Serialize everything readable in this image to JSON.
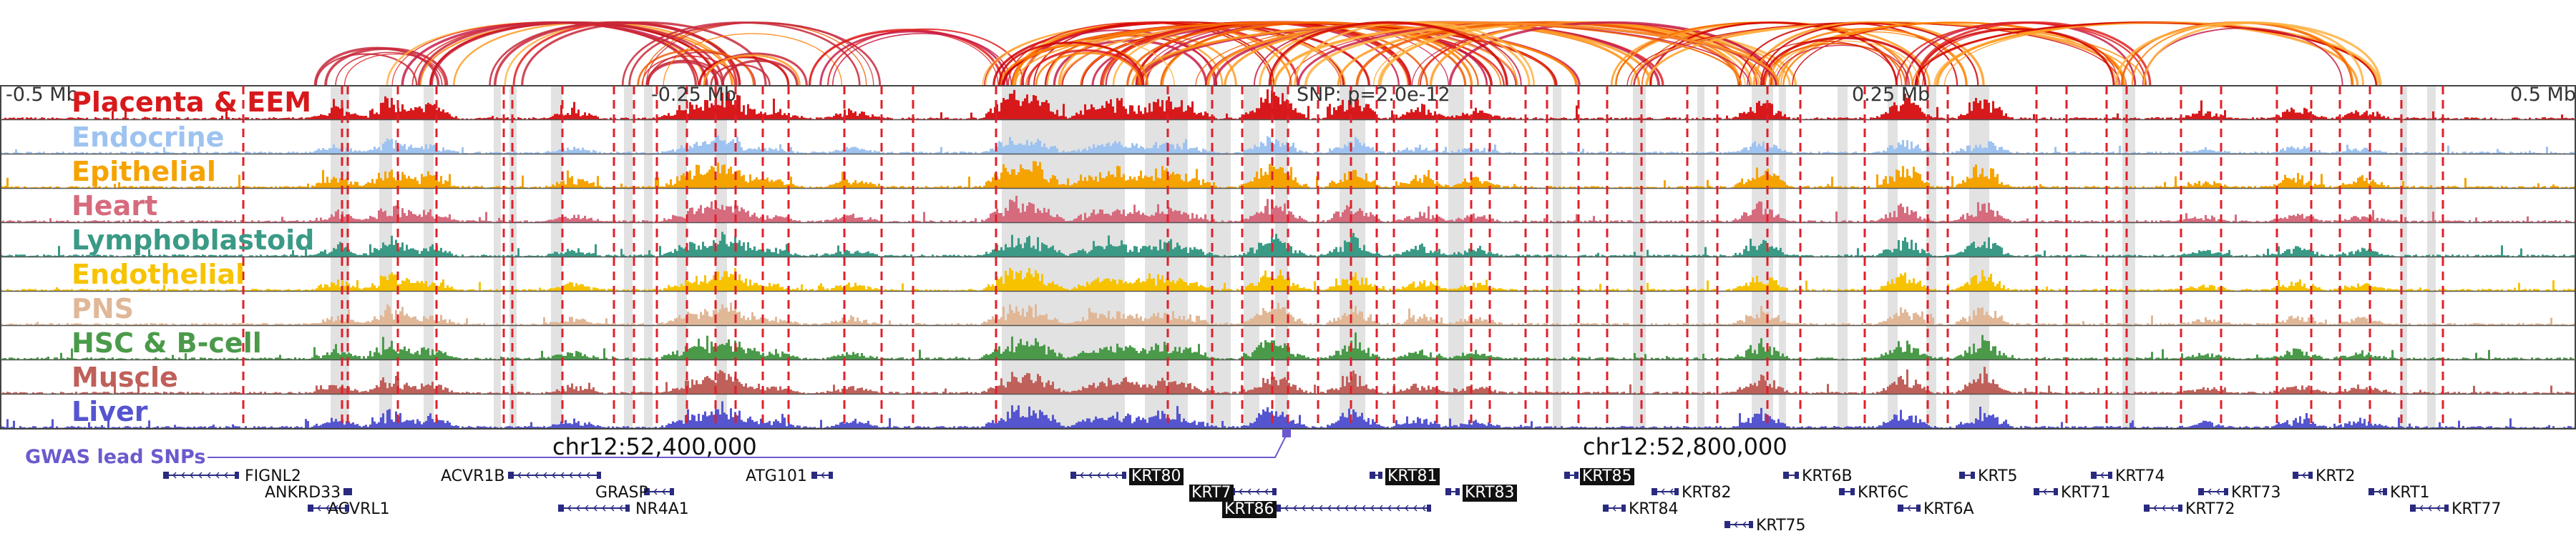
{
  "axis": {
    "ticks": [
      {
        "label": "-0.5 Mb",
        "pos": 0.0
      },
      {
        "label": "-0.25 Mb",
        "pos": 0.25
      },
      {
        "label": "0.25 Mb",
        "pos": 0.75
      },
      {
        "label": "0.5 Mb",
        "pos": 1.0
      }
    ],
    "snp_label": "SNP: p=2.0e-12"
  },
  "tracks": [
    {
      "label": "Placenta & EEM",
      "color": "#d7191c"
    },
    {
      "label": "Endocrine",
      "color": "#9ec3f0"
    },
    {
      "label": "Epithelial",
      "color": "#f5a300"
    },
    {
      "label": "Heart",
      "color": "#d66b7e"
    },
    {
      "label": "Lymphoblastoid",
      "color": "#3a9a86"
    },
    {
      "label": "Endothelial",
      "color": "#f7c300"
    },
    {
      "label": "PNS",
      "color": "#e0b898"
    },
    {
      "label": "HSC & B-cell",
      "color": "#4a9a4a"
    },
    {
      "label": "Muscle",
      "color": "#c0605a"
    },
    {
      "label": "Liver",
      "color": "#5555d0"
    }
  ],
  "gwas": {
    "label": "GWAS lead SNPs",
    "color": "#6a5acd"
  },
  "coords": [
    {
      "label": "chr12:52,400,000"
    },
    {
      "label": "chr12:52,800,000"
    }
  ],
  "genes": [
    {
      "name": "FIGNL2",
      "highlight": false
    },
    {
      "name": "ANKRD33",
      "highlight": false
    },
    {
      "name": "ACVRL1",
      "highlight": false
    },
    {
      "name": "ACVR1B",
      "highlight": false
    },
    {
      "name": "GRASP",
      "highlight": false
    },
    {
      "name": "NR4A1",
      "highlight": false
    },
    {
      "name": "ATG101",
      "highlight": false
    },
    {
      "name": "KRT80",
      "highlight": true
    },
    {
      "name": "KRT7",
      "highlight": true
    },
    {
      "name": "KRT86",
      "highlight": true
    },
    {
      "name": "KRT81",
      "highlight": true
    },
    {
      "name": "KRT83",
      "highlight": true
    },
    {
      "name": "KRT85",
      "highlight": true
    },
    {
      "name": "KRT84",
      "highlight": false
    },
    {
      "name": "KRT82",
      "highlight": false
    },
    {
      "name": "KRT75",
      "highlight": false
    },
    {
      "name": "KRT6B",
      "highlight": false
    },
    {
      "name": "KRT6C",
      "highlight": false
    },
    {
      "name": "KRT6A",
      "highlight": false
    },
    {
      "name": "KRT5",
      "highlight": false
    },
    {
      "name": "KRT71",
      "highlight": false
    },
    {
      "name": "KRT74",
      "highlight": false
    },
    {
      "name": "KRT72",
      "highlight": false
    },
    {
      "name": "KRT73",
      "highlight": false
    },
    {
      "name": "KRT2",
      "highlight": false
    },
    {
      "name": "KRT1",
      "highlight": false
    },
    {
      "name": "KRT77",
      "highlight": false
    }
  ]
}
